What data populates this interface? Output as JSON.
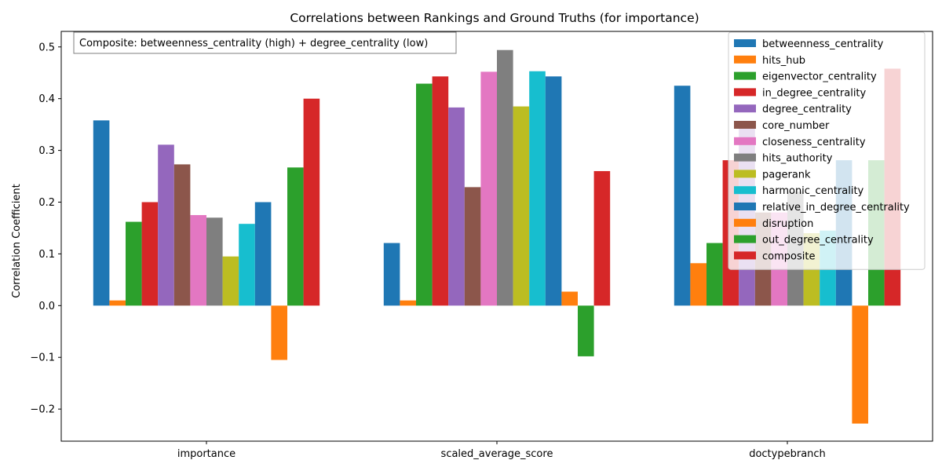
{
  "chart_data": {
    "type": "bar",
    "title": "Correlations between Rankings and Ground Truths (for importance)",
    "xlabel": "",
    "ylabel": "Correlation Coefficient",
    "ylim": [
      -0.262,
      0.53
    ],
    "yticks": [
      -0.2,
      -0.1,
      0.0,
      0.1,
      0.2,
      0.3,
      0.4,
      0.5
    ],
    "ytick_labels": [
      "−0.2",
      "−0.1",
      "0.0",
      "0.1",
      "0.2",
      "0.3",
      "0.4",
      "0.5"
    ],
    "grid": false,
    "legend_position": "top-right",
    "annotation": "Composite: betweenness_centrality (high) + degree_centrality (low)",
    "categories": [
      "importance",
      "scaled_average_score",
      "doctypebranch"
    ],
    "series": [
      {
        "name": "betweenness_centrality",
        "color": "#1f77b4",
        "values": [
          0.358,
          0.121,
          0.425
        ]
      },
      {
        "name": "hits_hub",
        "color": "#ff7f0e",
        "values": [
          0.01,
          0.01,
          0.082
        ]
      },
      {
        "name": "eigenvector_centrality",
        "color": "#2ca02c",
        "values": [
          0.162,
          0.429,
          0.121
        ]
      },
      {
        "name": "in_degree_centrality",
        "color": "#d62728",
        "values": [
          0.2,
          0.443,
          0.281
        ]
      },
      {
        "name": "degree_centrality",
        "color": "#9467bd",
        "values": [
          0.311,
          0.383,
          0.355
        ]
      },
      {
        "name": "core_number",
        "color": "#8c564b",
        "values": [
          0.273,
          0.229,
          0.18
        ]
      },
      {
        "name": "closeness_centrality",
        "color": "#e377c2",
        "values": [
          0.175,
          0.452,
          0.18
        ]
      },
      {
        "name": "hits_authority",
        "color": "#7f7f7f",
        "values": [
          0.17,
          0.494,
          0.22
        ]
      },
      {
        "name": "pagerank",
        "color": "#bcbd22",
        "values": [
          0.095,
          0.385,
          0.14
        ]
      },
      {
        "name": "harmonic_centrality",
        "color": "#17becf",
        "values": [
          0.158,
          0.453,
          0.145
        ]
      },
      {
        "name": "relative_in_degree_centrality",
        "color": "#1f77b4",
        "values": [
          0.2,
          0.443,
          0.281
        ]
      },
      {
        "name": "disruption",
        "color": "#ff7f0e",
        "values": [
          -0.105,
          0.027,
          -0.228
        ]
      },
      {
        "name": "out_degree_centrality",
        "color": "#2ca02c",
        "values": [
          0.267,
          -0.098,
          0.281
        ]
      },
      {
        "name": "composite",
        "color": "#d62728",
        "values": [
          0.4,
          0.26,
          0.458
        ]
      }
    ]
  }
}
